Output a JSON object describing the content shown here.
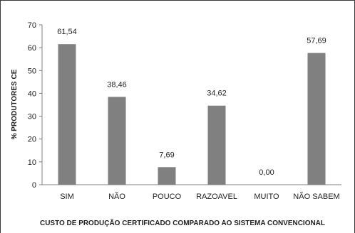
{
  "chart_data": {
    "type": "bar",
    "categories": [
      "SIM",
      "NÃO",
      "POUCO",
      "RAZOAVEL",
      "MUITO",
      "NÃO SABEM"
    ],
    "values": [
      61.54,
      38.46,
      7.69,
      34.62,
      0.0,
      57.69
    ],
    "value_labels": [
      "61,54",
      "38,46",
      "7,69",
      "34,62",
      "0,00",
      "57,69"
    ],
    "ylabel": "% PRODUTORES CE",
    "xlabel": "CUSTO DE PRODUÇÃO CERTIFICADO COMPARADO AO SISTEMA CONVENCIONAL",
    "ylim": [
      0,
      70
    ],
    "yticks": [
      0,
      10,
      20,
      30,
      40,
      50,
      60,
      70
    ],
    "grid": false,
    "bar_color": "#808080"
  }
}
